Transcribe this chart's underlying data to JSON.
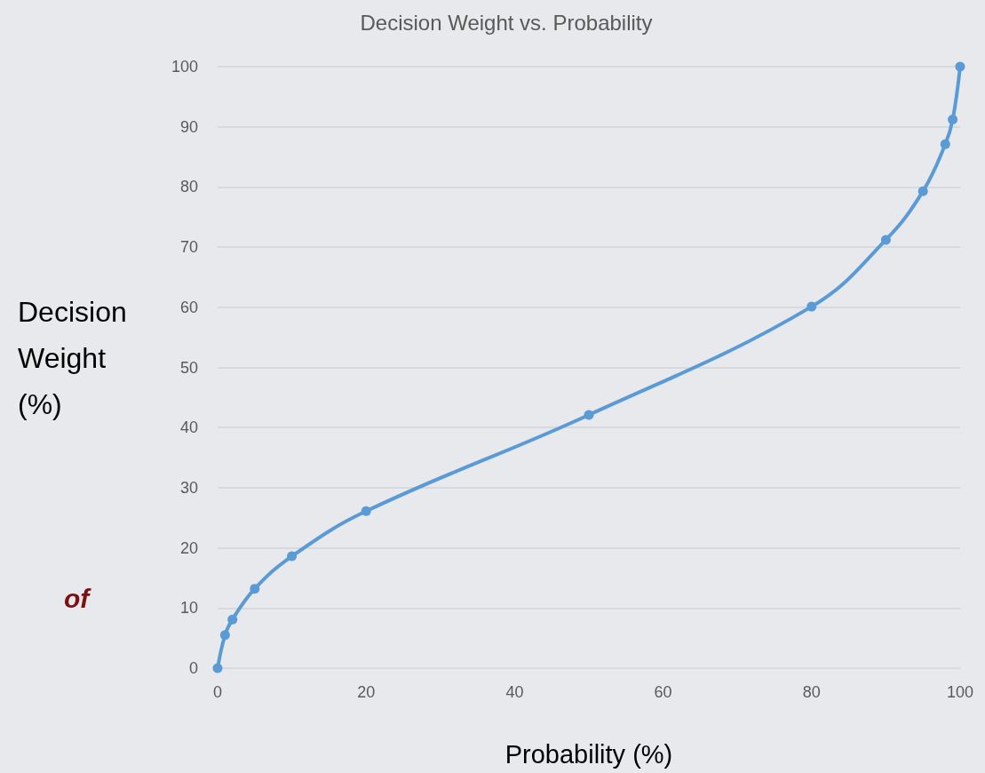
{
  "chart_data": {
    "type": "line",
    "title": "Decision Weight vs. Probability",
    "xlabel": "Probability (%)",
    "ylabel": "Decision Weight (%)",
    "annotations": [
      "of"
    ],
    "x": [
      0,
      1,
      2,
      5,
      10,
      20,
      50,
      80,
      90,
      95,
      98,
      99,
      100
    ],
    "series": [
      {
        "color": "#5b9bd5",
        "values": [
          0,
          5.5,
          8.1,
          13.2,
          18.6,
          26.1,
          42.1,
          60.1,
          71.2,
          79.3,
          87.1,
          91.2,
          100
        ]
      }
    ],
    "xlim": [
      0,
      100
    ],
    "xticks": [
      0,
      20,
      40,
      60,
      80,
      100
    ],
    "ylim": [
      0,
      100
    ],
    "yticks": [
      0,
      10,
      20,
      30,
      40,
      50,
      60,
      70,
      80,
      90,
      100
    ],
    "grid": "y",
    "marker": "circle",
    "line_style": "solid"
  }
}
